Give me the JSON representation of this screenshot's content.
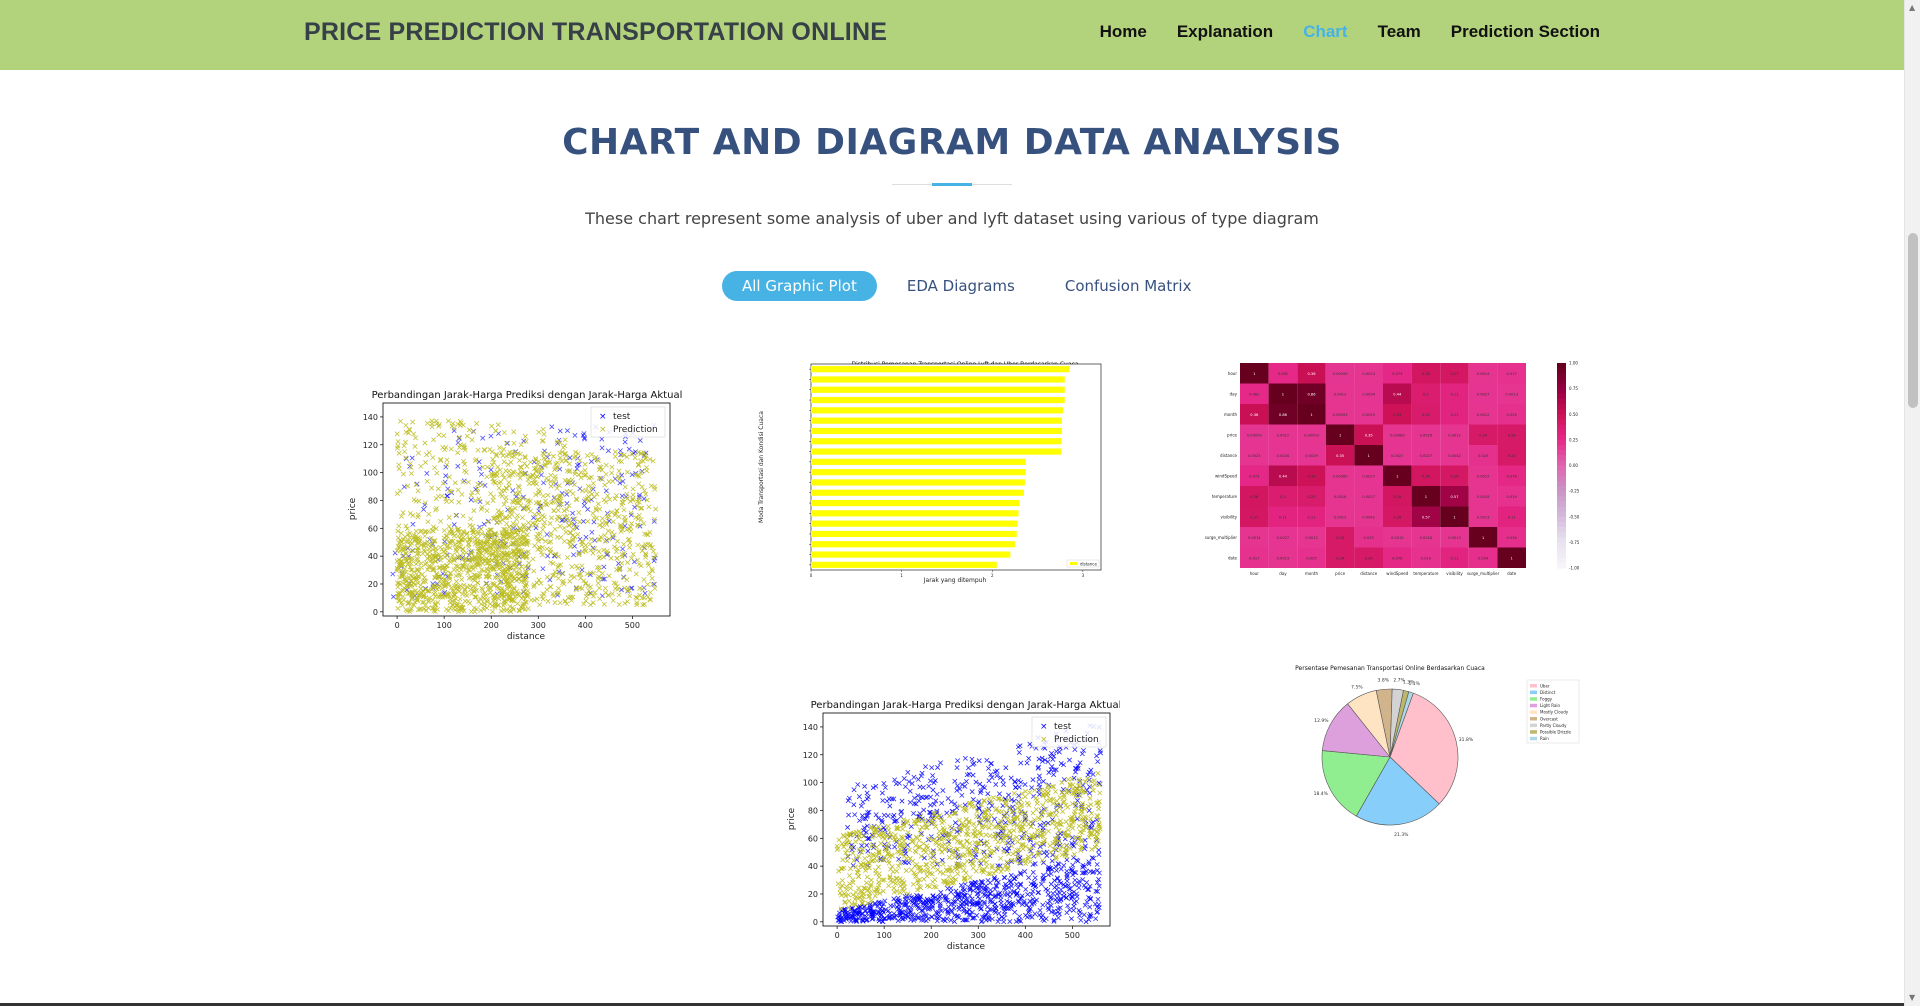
{
  "brand": "PRICE PREDICTION TRANSPORTATION ONLINE",
  "nav": [
    {
      "label": "Home"
    },
    {
      "label": "Explanation"
    },
    {
      "label": "Chart"
    },
    {
      "label": "Team"
    },
    {
      "label": "Prediction Section"
    }
  ],
  "section": {
    "title": "CHART AND DIAGRAM DATA ANALYSIS",
    "subtitle": "These chart represent some analysis of uber and lyft dataset using various of type diagram"
  },
  "filters": [
    {
      "label": "All Graphic Plot",
      "active": true
    },
    {
      "label": "EDA Diagrams",
      "active": false
    },
    {
      "label": "Confusion Matrix",
      "active": false
    }
  ],
  "colors": {
    "accent": "#47b2e4",
    "navbar": "#b3d27c",
    "heading": "#37517e",
    "test": "#0000ff",
    "prediction": "#bcbd22",
    "bar": "#ffff00"
  },
  "chart_data": [
    {
      "type": "scatter",
      "title": "Perbandingan Jarak-Harga Prediksi dengan Jarak-Harga Aktual",
      "xlabel": "distance",
      "ylabel": "price",
      "xticks": [
        "0",
        "100",
        "200",
        "300",
        "400",
        "500"
      ],
      "yticks": [
        "0",
        "20",
        "40",
        "60",
        "80",
        "100",
        "120",
        "140"
      ],
      "xlim": [
        -30,
        580
      ],
      "ylim": [
        -3,
        150
      ],
      "legend": [
        "test",
        "Prediction"
      ],
      "legend_position": "top-right"
    },
    {
      "type": "bar",
      "title": "Distribusi Pemesanan Transportasi Online Lyft dan Uber Berdasarkan Cuaca",
      "xlabel": "Jarak yang ditempuh",
      "ylabel": "Moda Transportasi dan Kondisi Cuaca",
      "values": [
        2.85,
        2.8,
        2.8,
        2.8,
        2.78,
        2.77,
        2.77,
        2.76,
        2.76,
        2.37,
        2.37,
        2.36,
        2.35,
        2.3,
        2.29,
        2.28,
        2.27,
        2.25,
        2.2,
        2.05
      ],
      "xticks": [
        "0",
        "1",
        "2",
        "3"
      ],
      "legend": [
        "distance"
      ],
      "legend_position": "bottom-right"
    },
    {
      "type": "heatmap",
      "rows": [
        "hour",
        "day",
        "month",
        "price",
        "distance",
        "windSpeed",
        "temperature",
        "visibility",
        "surge_multiplier",
        "date"
      ],
      "columns": [
        "hour",
        "day",
        "month",
        "price",
        "distance",
        "windSpeed",
        "temperature",
        "visibility",
        "surge_multiplier",
        "date"
      ],
      "values": [
        [
          1,
          0.062,
          0.36,
          0.00059,
          0.0023,
          0.073,
          0.28,
          0.27,
          0.0014,
          0.017
        ],
        [
          0.062,
          1,
          0.86,
          0.0012,
          0.0034,
          0.44,
          0.2,
          0.11,
          0.0027,
          0.0013
        ],
        [
          0.36,
          0.86,
          1,
          0.00093,
          0.0029,
          0.33,
          0.22,
          0.11,
          0.0012,
          0.025
        ],
        [
          0.00059,
          0.0012,
          0.00093,
          1,
          0.35,
          0.00089,
          0.0016,
          0.0012,
          0.24,
          0.24
        ],
        [
          0.0023,
          0.0034,
          0.0029,
          0.35,
          1,
          0.0027,
          0.0027,
          0.0042,
          0.025,
          0.24
        ],
        [
          0.073,
          0.44,
          0.33,
          0.00089,
          0.0027,
          1,
          0.28,
          0.26,
          0.0015,
          0.076
        ],
        [
          0.28,
          0.2,
          0.22,
          0.0016,
          0.0027,
          0.28,
          1,
          0.57,
          0.0018,
          0.019
        ],
        [
          0.27,
          0.11,
          0.11,
          0.0012,
          0.0042,
          0.26,
          0.57,
          1,
          0.0013,
          0.11
        ],
        [
          0.0014,
          0.0027,
          0.0012,
          0.24,
          0.025,
          0.0015,
          0.0018,
          0.0013,
          1,
          0.034
        ],
        [
          0.017,
          0.0013,
          0.025,
          0.24,
          0.24,
          0.076,
          0.019,
          0.11,
          0.034,
          1
        ]
      ],
      "colorbar_ticks": [
        "1.00",
        "0.75",
        "0.50",
        "0.25",
        "0.00",
        "-0.25",
        "-0.50",
        "-0.75",
        "-1.00"
      ]
    },
    {
      "type": "scatter",
      "title": "Perbandingan Jarak-Harga Prediksi dengan Jarak-Harga Aktual",
      "xlabel": "distance",
      "ylabel": "price",
      "xticks": [
        "0",
        "100",
        "200",
        "300",
        "400",
        "500"
      ],
      "yticks": [
        "0",
        "20",
        "40",
        "60",
        "80",
        "100",
        "120",
        "140"
      ],
      "xlim": [
        -30,
        580
      ],
      "ylim": [
        -3,
        150
      ],
      "legend": [
        "test",
        "Prediction"
      ],
      "legend_position": "top-right"
    },
    {
      "type": "pie",
      "title": "Persentase Pemesanan Transportasi Online Berdasarkan Cuaca",
      "labels": [
        "Uber",
        "Distinct",
        "Foggy",
        "Light Rain",
        "Mostly Cloudy",
        "Overcast",
        "Partly Cloudy",
        "Possible Drizzle",
        "Rain"
      ],
      "values": [
        31.8,
        21.3,
        18.4,
        12.9,
        7.5,
        3.8,
        2.7,
        1.3,
        1.1
      ],
      "value_labels": [
        "31.8%",
        "21.3%",
        "18.4%",
        "12.9%",
        "7.5%",
        "3.8%",
        "2.7%",
        "1.3%",
        "1.1%"
      ],
      "colors": [
        "#ffc0cb",
        "#87cefa",
        "#90ee90",
        "#dda0dd",
        "#ffe4c4",
        "#d2b48c",
        "#d3d3d3",
        "#bdb76b",
        "#add8e6"
      ],
      "legend_position": "right"
    }
  ]
}
